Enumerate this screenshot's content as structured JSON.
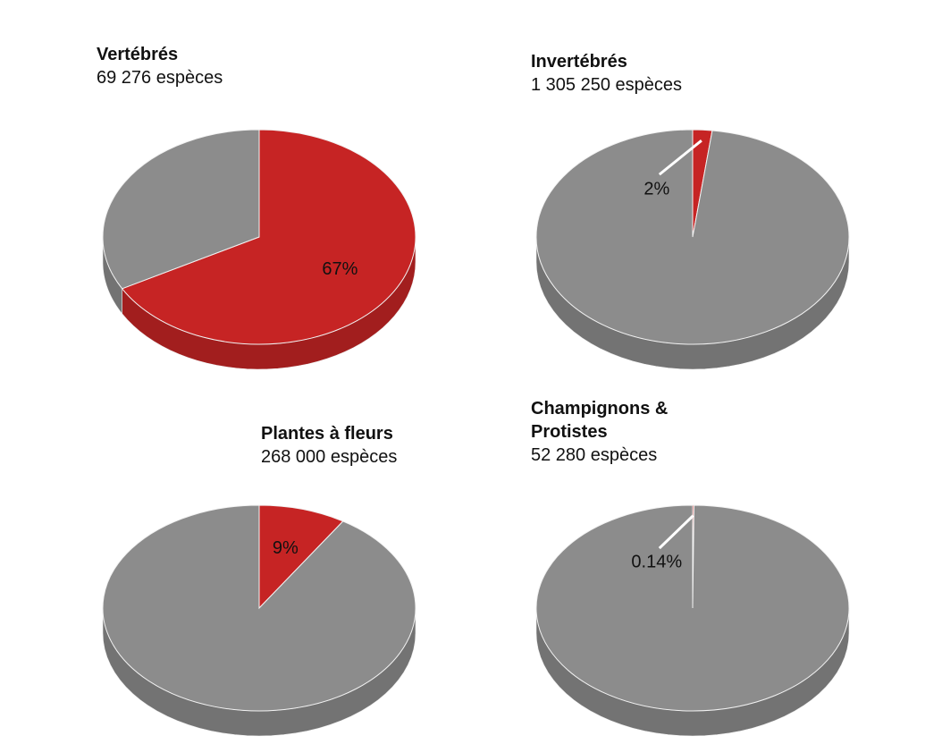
{
  "chart_data": [
    {
      "type": "pie",
      "title": "Vertébrés",
      "subtitle": "69 276 espèces",
      "values": [
        67,
        33
      ],
      "value_labels": [
        "67%",
        null
      ],
      "colors": [
        "#c62424",
        "#8c8c8c"
      ]
    },
    {
      "type": "pie",
      "title": "Invertébrés",
      "subtitle": "1 305 250 espèces",
      "values": [
        2,
        98
      ],
      "value_labels": [
        "2%",
        null
      ],
      "colors": [
        "#c62424",
        "#8c8c8c"
      ]
    },
    {
      "type": "pie",
      "title": "Plantes à fleurs",
      "subtitle": "268 000 espèces",
      "values": [
        9,
        91
      ],
      "value_labels": [
        "9%",
        null
      ],
      "colors": [
        "#c62424",
        "#8c8c8c"
      ]
    },
    {
      "type": "pie",
      "title": "Champignons & Protistes",
      "subtitle": "52 280 espèces",
      "values": [
        0.14,
        99.86
      ],
      "value_labels": [
        "0.14%",
        null
      ],
      "colors": [
        "#c62424",
        "#8c8c8c"
      ]
    }
  ]
}
